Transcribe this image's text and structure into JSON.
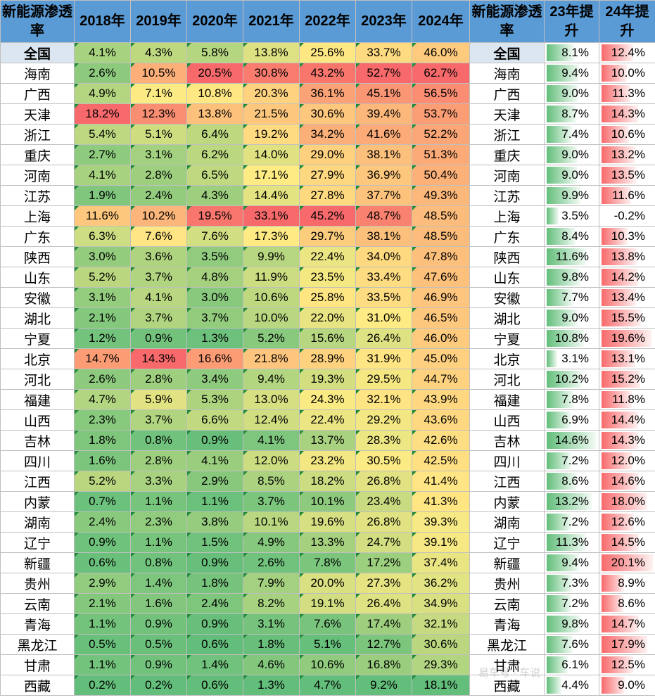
{
  "header": {
    "region_label": "新能源渗透率",
    "years": [
      "2018年",
      "2019年",
      "2020年",
      "2021年",
      "2022年",
      "2023年",
      "2024年"
    ],
    "region_label_2": "新能源渗透率",
    "inc23_label": "23年提升",
    "inc24_label": "24年提升"
  },
  "colors": {
    "scale_low": "#63be7b",
    "scale_mid": "#ffeb84",
    "scale_high": "#f8696b",
    "header_bg": "#5b9bd5"
  },
  "table_data": {
    "type": "table",
    "rows": [
      {
        "region": "全国",
        "values": [
          "4.1%",
          "4.3%",
          "5.8%",
          "13.8%",
          "25.6%",
          "33.7%",
          "46.0%"
        ],
        "inc23": "8.1%",
        "inc24": "12.4%"
      },
      {
        "region": "海南",
        "values": [
          "2.6%",
          "10.5%",
          "20.5%",
          "30.8%",
          "43.2%",
          "52.7%",
          "62.7%"
        ],
        "inc23": "9.4%",
        "inc24": "10.0%"
      },
      {
        "region": "广西",
        "values": [
          "4.9%",
          "7.1%",
          "10.8%",
          "20.3%",
          "36.1%",
          "45.1%",
          "56.5%"
        ],
        "inc23": "9.0%",
        "inc24": "11.3%"
      },
      {
        "region": "天津",
        "values": [
          "18.2%",
          "12.3%",
          "13.8%",
          "21.5%",
          "30.6%",
          "39.4%",
          "53.7%"
        ],
        "inc23": "8.7%",
        "inc24": "14.3%"
      },
      {
        "region": "浙江",
        "values": [
          "5.4%",
          "5.1%",
          "6.4%",
          "19.2%",
          "34.2%",
          "41.6%",
          "52.2%"
        ],
        "inc23": "7.4%",
        "inc24": "10.6%"
      },
      {
        "region": "重庆",
        "values": [
          "2.7%",
          "3.1%",
          "6.2%",
          "14.0%",
          "29.0%",
          "38.1%",
          "51.3%"
        ],
        "inc23": "9.0%",
        "inc24": "13.2%"
      },
      {
        "region": "河南",
        "values": [
          "4.1%",
          "2.8%",
          "6.5%",
          "17.1%",
          "27.9%",
          "36.9%",
          "50.4%"
        ],
        "inc23": "9.0%",
        "inc24": "13.5%"
      },
      {
        "region": "江苏",
        "values": [
          "1.9%",
          "2.4%",
          "4.3%",
          "14.4%",
          "27.8%",
          "37.7%",
          "49.3%"
        ],
        "inc23": "9.9%",
        "inc24": "11.6%"
      },
      {
        "region": "上海",
        "values": [
          "11.6%",
          "10.2%",
          "19.5%",
          "33.1%",
          "45.2%",
          "48.7%",
          "48.5%"
        ],
        "inc23": "3.5%",
        "inc24": "-0.2%"
      },
      {
        "region": "广东",
        "values": [
          "6.3%",
          "7.6%",
          "7.6%",
          "17.3%",
          "29.7%",
          "38.1%",
          "48.5%"
        ],
        "inc23": "8.4%",
        "inc24": "10.3%"
      },
      {
        "region": "陕西",
        "values": [
          "3.0%",
          "3.6%",
          "3.5%",
          "9.9%",
          "22.4%",
          "34.0%",
          "47.8%"
        ],
        "inc23": "11.6%",
        "inc24": "13.8%"
      },
      {
        "region": "山东",
        "values": [
          "5.2%",
          "3.7%",
          "4.8%",
          "11.9%",
          "23.5%",
          "33.4%",
          "47.6%"
        ],
        "inc23": "9.8%",
        "inc24": "14.2%"
      },
      {
        "region": "安徽",
        "values": [
          "3.1%",
          "4.1%",
          "3.0%",
          "10.6%",
          "25.8%",
          "33.5%",
          "46.9%"
        ],
        "inc23": "7.7%",
        "inc24": "13.4%"
      },
      {
        "region": "湖北",
        "values": [
          "2.1%",
          "3.7%",
          "3.7%",
          "10.0%",
          "22.0%",
          "31.0%",
          "46.5%"
        ],
        "inc23": "9.0%",
        "inc24": "15.5%"
      },
      {
        "region": "宁夏",
        "values": [
          "1.2%",
          "0.9%",
          "1.3%",
          "5.2%",
          "15.6%",
          "26.4%",
          "46.0%"
        ],
        "inc23": "10.8%",
        "inc24": "19.6%"
      },
      {
        "region": "北京",
        "values": [
          "14.7%",
          "14.3%",
          "16.6%",
          "21.8%",
          "28.9%",
          "31.9%",
          "45.0%"
        ],
        "inc23": "3.1%",
        "inc24": "13.1%"
      },
      {
        "region": "河北",
        "values": [
          "2.6%",
          "2.8%",
          "3.4%",
          "9.4%",
          "19.3%",
          "29.5%",
          "44.7%"
        ],
        "inc23": "10.2%",
        "inc24": "15.2%"
      },
      {
        "region": "福建",
        "values": [
          "4.7%",
          "5.9%",
          "5.3%",
          "13.0%",
          "24.3%",
          "32.1%",
          "43.9%"
        ],
        "inc23": "7.8%",
        "inc24": "11.8%"
      },
      {
        "region": "山西",
        "values": [
          "2.3%",
          "3.7%",
          "6.6%",
          "12.4%",
          "22.4%",
          "29.2%",
          "43.6%"
        ],
        "inc23": "6.9%",
        "inc24": "14.4%"
      },
      {
        "region": "吉林",
        "values": [
          "1.8%",
          "0.8%",
          "0.9%",
          "4.1%",
          "13.7%",
          "28.3%",
          "42.6%"
        ],
        "inc23": "14.6%",
        "inc24": "14.3%"
      },
      {
        "region": "四川",
        "values": [
          "1.6%",
          "2.8%",
          "4.1%",
          "12.0%",
          "23.2%",
          "30.5%",
          "42.5%"
        ],
        "inc23": "7.2%",
        "inc24": "12.0%"
      },
      {
        "region": "江西",
        "values": [
          "5.2%",
          "3.3%",
          "2.9%",
          "8.5%",
          "18.2%",
          "26.8%",
          "41.4%"
        ],
        "inc23": "8.6%",
        "inc24": "14.6%"
      },
      {
        "region": "内蒙",
        "values": [
          "0.7%",
          "1.1%",
          "1.1%",
          "3.7%",
          "10.1%",
          "23.4%",
          "41.3%"
        ],
        "inc23": "13.2%",
        "inc24": "18.0%"
      },
      {
        "region": "湖南",
        "values": [
          "2.4%",
          "2.3%",
          "3.8%",
          "10.1%",
          "19.6%",
          "26.8%",
          "39.3%"
        ],
        "inc23": "7.2%",
        "inc24": "12.6%"
      },
      {
        "region": "辽宁",
        "values": [
          "0.9%",
          "1.1%",
          "1.5%",
          "4.9%",
          "13.3%",
          "24.7%",
          "39.1%"
        ],
        "inc23": "11.3%",
        "inc24": "14.5%"
      },
      {
        "region": "新疆",
        "values": [
          "0.6%",
          "0.8%",
          "0.9%",
          "2.6%",
          "7.8%",
          "17.2%",
          "37.4%"
        ],
        "inc23": "9.4%",
        "inc24": "20.1%"
      },
      {
        "region": "贵州",
        "values": [
          "2.9%",
          "1.4%",
          "1.8%",
          "7.9%",
          "20.0%",
          "27.3%",
          "36.2%"
        ],
        "inc23": "7.3%",
        "inc24": "8.9%"
      },
      {
        "region": "云南",
        "values": [
          "2.1%",
          "1.6%",
          "2.4%",
          "8.2%",
          "19.1%",
          "26.4%",
          "34.9%"
        ],
        "inc23": "7.2%",
        "inc24": "8.6%"
      },
      {
        "region": "青海",
        "values": [
          "1.1%",
          "0.9%",
          "0.9%",
          "3.1%",
          "7.6%",
          "17.4%",
          "32.1%"
        ],
        "inc23": "9.8%",
        "inc24": "14.7%"
      },
      {
        "region": "黑龙江",
        "values": [
          "0.5%",
          "0.5%",
          "0.6%",
          "1.8%",
          "5.1%",
          "12.7%",
          "30.6%"
        ],
        "inc23": "7.6%",
        "inc24": "17.9%"
      },
      {
        "region": "甘肃",
        "values": [
          "1.1%",
          "0.9%",
          "1.4%",
          "4.6%",
          "10.6%",
          "16.8%",
          "29.3%"
        ],
        "inc23": "6.1%",
        "inc24": "12.5%"
      },
      {
        "region": "西藏",
        "values": [
          "0.2%",
          "0.2%",
          "0.6%",
          "1.3%",
          "4.7%",
          "9.2%",
          "18.1%"
        ],
        "inc23": "4.4%",
        "inc24": "9.0%"
      }
    ]
  }
}
